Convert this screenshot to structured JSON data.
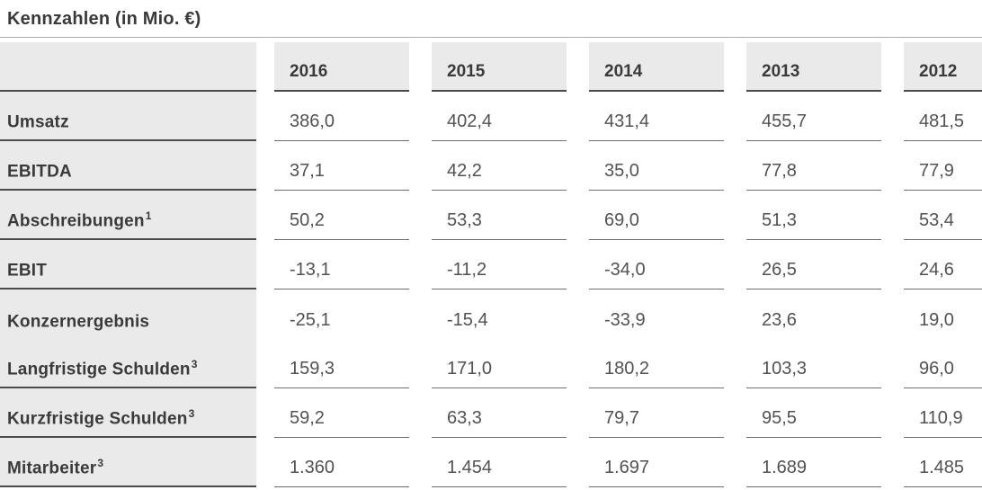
{
  "title": "Kennzahlen (in Mio. €)",
  "colors": {
    "cell_background": "#eaeaea",
    "dark_separator": "#4b4b4b",
    "value_separator": "#6f6f6f",
    "label_text": "#3a3a3a",
    "value_text": "#525252",
    "title_rule": "#ababab"
  },
  "table": {
    "years": [
      "2016",
      "2015",
      "2014",
      "2013",
      "2012"
    ],
    "rows": [
      {
        "label": "Umsatz",
        "sup": "",
        "values": [
          "386,0",
          "402,4",
          "431,4",
          "455,7",
          "481,5"
        ]
      },
      {
        "label": "EBITDA",
        "sup": "",
        "values": [
          "37,1",
          "42,2",
          "35,0",
          "77,8",
          "77,9"
        ]
      },
      {
        "label": "Abschreibungen",
        "sup": "1",
        "values": [
          "50,2",
          "53,3",
          "69,0",
          "51,3",
          "53,4"
        ]
      },
      {
        "label": "EBIT",
        "sup": "",
        "values": [
          "-13,1",
          "-11,2",
          "-34,0",
          "26,5",
          "24,6"
        ]
      },
      {
        "label": "Konzernergebnis",
        "sup": "",
        "values": [
          "-25,1",
          "-15,4",
          "-33,9",
          "23,6",
          "19,0"
        ]
      },
      {
        "label": "Langfristige Schulden",
        "sup": "3",
        "values": [
          "159,3",
          "171,0",
          "180,2",
          "103,3",
          "96,0"
        ]
      },
      {
        "label": "Kurzfristige Schulden",
        "sup": "3",
        "values": [
          "59,2",
          "63,3",
          "79,7",
          "95,5",
          "110,9"
        ]
      },
      {
        "label": "Mitarbeiter",
        "sup": "3",
        "values": [
          "1.360",
          "1.454",
          "1.697",
          "1.689",
          "1.485"
        ]
      }
    ]
  },
  "chart_data": {
    "type": "table",
    "title": "Kennzahlen (in Mio. €)",
    "unit": "Mio. €",
    "categories": [
      "2016",
      "2015",
      "2014",
      "2013",
      "2012"
    ],
    "series": [
      {
        "name": "Umsatz",
        "values": [
          386.0,
          402.4,
          431.4,
          455.7,
          481.5
        ]
      },
      {
        "name": "EBITDA",
        "values": [
          37.1,
          42.2,
          35.0,
          77.8,
          77.9
        ]
      },
      {
        "name": "Abschreibungen¹",
        "values": [
          50.2,
          53.3,
          69.0,
          51.3,
          53.4
        ]
      },
      {
        "name": "EBIT",
        "values": [
          -13.1,
          -11.2,
          -34.0,
          26.5,
          24.6
        ]
      },
      {
        "name": "Konzernergebnis",
        "values": [
          -25.1,
          -15.4,
          -33.9,
          23.6,
          19.0
        ]
      },
      {
        "name": "Langfristige Schulden³",
        "values": [
          159.3,
          171.0,
          180.2,
          103.3,
          96.0
        ]
      },
      {
        "name": "Kurzfristige Schulden³",
        "values": [
          59.2,
          63.3,
          79.7,
          95.5,
          110.9
        ]
      },
      {
        "name": "Mitarbeiter³",
        "values": [
          1360,
          1454,
          1697,
          1689,
          1485
        ]
      }
    ]
  }
}
